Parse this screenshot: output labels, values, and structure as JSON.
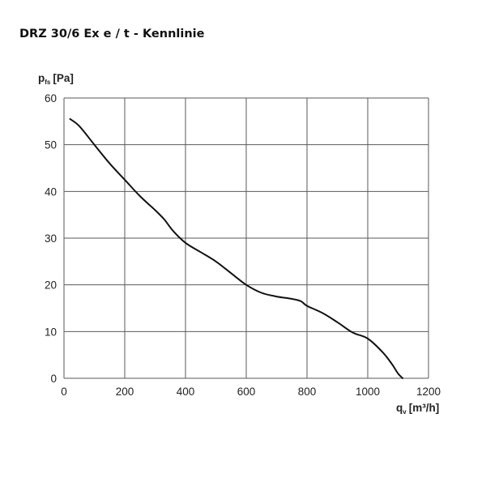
{
  "title": "DRZ 30/6 Ex e / t - Kennlinie",
  "chart_data": {
    "type": "line",
    "title": "DRZ 30/6 Ex e / t - Kennlinie",
    "ylabel": {
      "main": "p",
      "sub": "fs",
      "unit": "[Pa]"
    },
    "xlabel": {
      "main": "q",
      "sub": "v",
      "unit": "[m³/h]"
    },
    "xlim": [
      0,
      1200
    ],
    "ylim": [
      0,
      60
    ],
    "x_ticks": [
      0,
      200,
      400,
      600,
      800,
      1000,
      1200
    ],
    "y_ticks": [
      0,
      10,
      20,
      30,
      40,
      50,
      60
    ],
    "grid": true,
    "line_color": "#111111",
    "series": [
      {
        "x": [
          20,
          50,
          100,
          150,
          200,
          250,
          300,
          330,
          360,
          400,
          450,
          500,
          550,
          600,
          650,
          700,
          750,
          780,
          800,
          850,
          900,
          950,
          1000,
          1050,
          1080,
          1100,
          1115
        ],
        "y": [
          55.5,
          54.0,
          50.0,
          46.0,
          42.5,
          39.0,
          36.0,
          34.0,
          31.5,
          29.0,
          27.0,
          25.0,
          22.5,
          20.0,
          18.3,
          17.5,
          17.0,
          16.5,
          15.5,
          14.0,
          12.0,
          9.8,
          8.5,
          5.5,
          3.0,
          1.0,
          0
        ]
      }
    ]
  }
}
